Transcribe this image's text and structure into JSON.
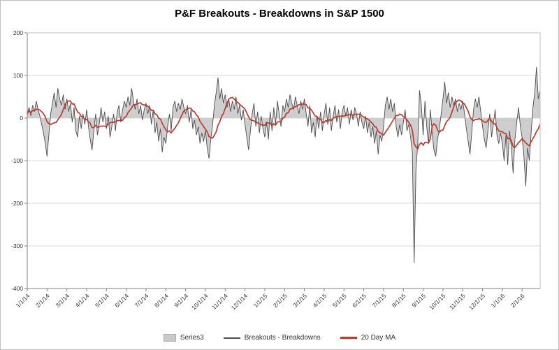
{
  "chart_data": {
    "type": "line",
    "title": "P&F Breakouts - Breakdowns in S&P 1500",
    "xlabel": "",
    "ylabel": "",
    "ylim": [
      -400,
      200
    ],
    "y_ticks": [
      200,
      100,
      0,
      -100,
      -200,
      -300,
      -400
    ],
    "grid": true,
    "legend_position": "bottom",
    "x_tick_labels": [
      "1/1/14",
      "2/1/14",
      "3/1/14",
      "4/1/14",
      "5/1/14",
      "6/1/14",
      "7/1/14",
      "8/1/14",
      "9/1/14",
      "10/1/14",
      "11/1/14",
      "12/1/14",
      "1/1/15",
      "2/1/15",
      "3/1/15",
      "4/1/15",
      "5/1/15",
      "6/1/15",
      "7/1/15",
      "8/1/15",
      "9/1/15",
      "10/1/15",
      "11/1/15",
      "12/1/15",
      "1/1/16",
      "2/1/16"
    ],
    "points_per_month": 11,
    "series": [
      {
        "name": "Series3",
        "type": "area",
        "color": "#c9c9c9",
        "source": "values"
      },
      {
        "name": "Breakouts - Breakdowns",
        "type": "line",
        "color": "#4d4d4d",
        "source": "values"
      },
      {
        "name": "20 Day MA",
        "type": "line",
        "color": "#c0392b",
        "source": "moving_average",
        "window_days": 20,
        "window_samples": 10
      }
    ],
    "values": [
      10,
      25,
      5,
      30,
      15,
      40,
      20,
      5,
      -15,
      -35,
      -60,
      -90,
      -40,
      10,
      35,
      60,
      25,
      70,
      45,
      30,
      55,
      20,
      45,
      15,
      35,
      -10,
      25,
      -30,
      -45,
      5,
      -25,
      10,
      -15,
      20,
      -20,
      -50,
      -75,
      -30,
      10,
      -40,
      -15,
      25,
      -10,
      15,
      -25,
      5,
      -45,
      -20,
      10,
      -30,
      15,
      30,
      -10,
      20,
      40,
      25,
      50,
      30,
      70,
      40,
      20,
      45,
      10,
      30,
      -5,
      20,
      35,
      10,
      30,
      -15,
      20,
      -35,
      -10,
      -55,
      -25,
      -80,
      -45,
      -60,
      -20,
      10,
      -30,
      25,
      40,
      15,
      35,
      20,
      45,
      25,
      10,
      30,
      -10,
      20,
      -25,
      -5,
      -40,
      -20,
      -60,
      -35,
      -55,
      -30,
      -70,
      -95,
      -50,
      -15,
      30,
      60,
      95,
      45,
      70,
      35,
      55,
      25,
      45,
      15,
      40,
      20,
      50,
      10,
      30,
      -5,
      20,
      -15,
      -45,
      -75,
      -30,
      10,
      35,
      -20,
      15,
      -35,
      5,
      -25,
      -45,
      -10,
      -50,
      15,
      -30,
      25,
      -15,
      40,
      10,
      -20,
      30,
      15,
      45,
      25,
      55,
      35,
      20,
      50,
      30,
      10,
      40,
      20,
      45,
      10,
      -20,
      30,
      -35,
      -10,
      -45,
      5,
      -25,
      15,
      -30,
      10,
      35,
      -15,
      25,
      -30,
      5,
      30,
      -10,
      20,
      -25,
      15,
      30,
      5,
      25,
      -15,
      20,
      -5,
      25,
      10,
      -20,
      15,
      -10,
      -25,
      5,
      -35,
      -10,
      -45,
      -20,
      -60,
      -30,
      -85,
      -40,
      -55,
      -20,
      30,
      50,
      20,
      45,
      15,
      35,
      -20,
      -45,
      -15,
      -40,
      -10,
      20,
      -30,
      -15,
      -45,
      -80,
      -340,
      -120,
      -60,
      65,
      30,
      -40,
      40,
      -20,
      -60,
      20,
      -35,
      -75,
      -90,
      -50,
      -25,
      10,
      45,
      85,
      35,
      60,
      25,
      50,
      30,
      45,
      15,
      35,
      20,
      40,
      10,
      -25,
      -55,
      -85,
      -35,
      20,
      45,
      25,
      50,
      15,
      -20,
      -50,
      -70,
      -30,
      10,
      -45,
      -15,
      20,
      -40,
      -60,
      -35,
      -60,
      -100,
      -40,
      -110,
      -30,
      -70,
      -130,
      -50,
      -10,
      25,
      -20,
      -45,
      -90,
      -160,
      -70,
      -100,
      -35,
      25,
      60,
      120,
      45,
      65
    ]
  },
  "colors": {
    "gridline": "#d9d9d9",
    "axis": "#808080",
    "plot_border": "#bfbfbf",
    "tick_label": "#333333"
  }
}
